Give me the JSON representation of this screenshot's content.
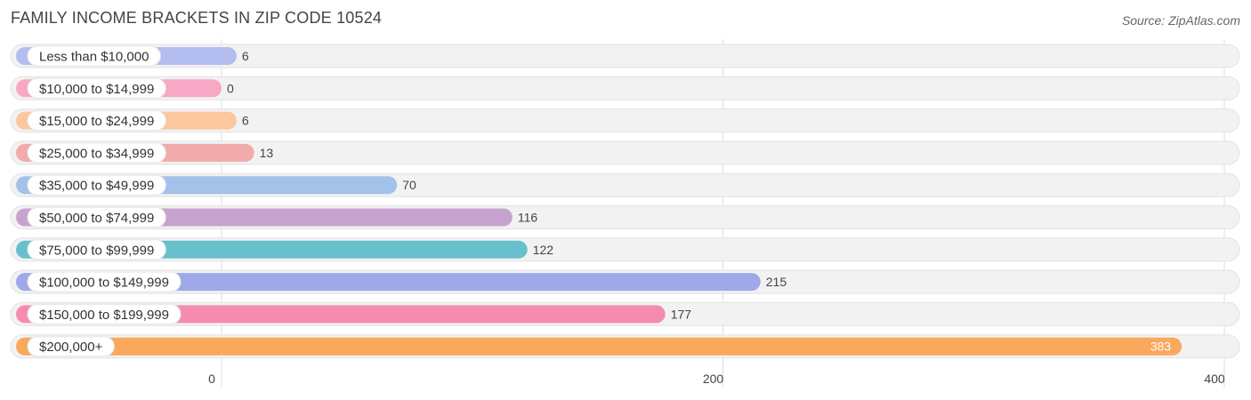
{
  "header": {
    "title": "FAMILY INCOME BRACKETS IN ZIP CODE 10524",
    "source": "Source: ZipAtlas.com"
  },
  "chart_data": {
    "type": "bar",
    "orientation": "horizontal",
    "title": "FAMILY INCOME BRACKETS IN ZIP CODE 10524",
    "xlabel": "",
    "ylabel": "",
    "xlim": [
      0,
      400
    ],
    "ticks": [
      0,
      200,
      400
    ],
    "grid": true,
    "categories": [
      "Less than $10,000",
      "$10,000 to $14,999",
      "$15,000 to $24,999",
      "$25,000 to $34,999",
      "$35,000 to $49,999",
      "$50,000 to $74,999",
      "$75,000 to $99,999",
      "$100,000 to $149,999",
      "$150,000 to $199,999",
      "$200,000+"
    ],
    "values": [
      6,
      0,
      6,
      13,
      70,
      116,
      122,
      215,
      177,
      383
    ],
    "colors": [
      "#b3bdf0",
      "#f7a8c4",
      "#fbc79c",
      "#f2aaaa",
      "#a3c2ea",
      "#c6a3cf",
      "#68c0cc",
      "#9fa8e8",
      "#f58caf",
      "#f9a85c"
    ]
  }
}
